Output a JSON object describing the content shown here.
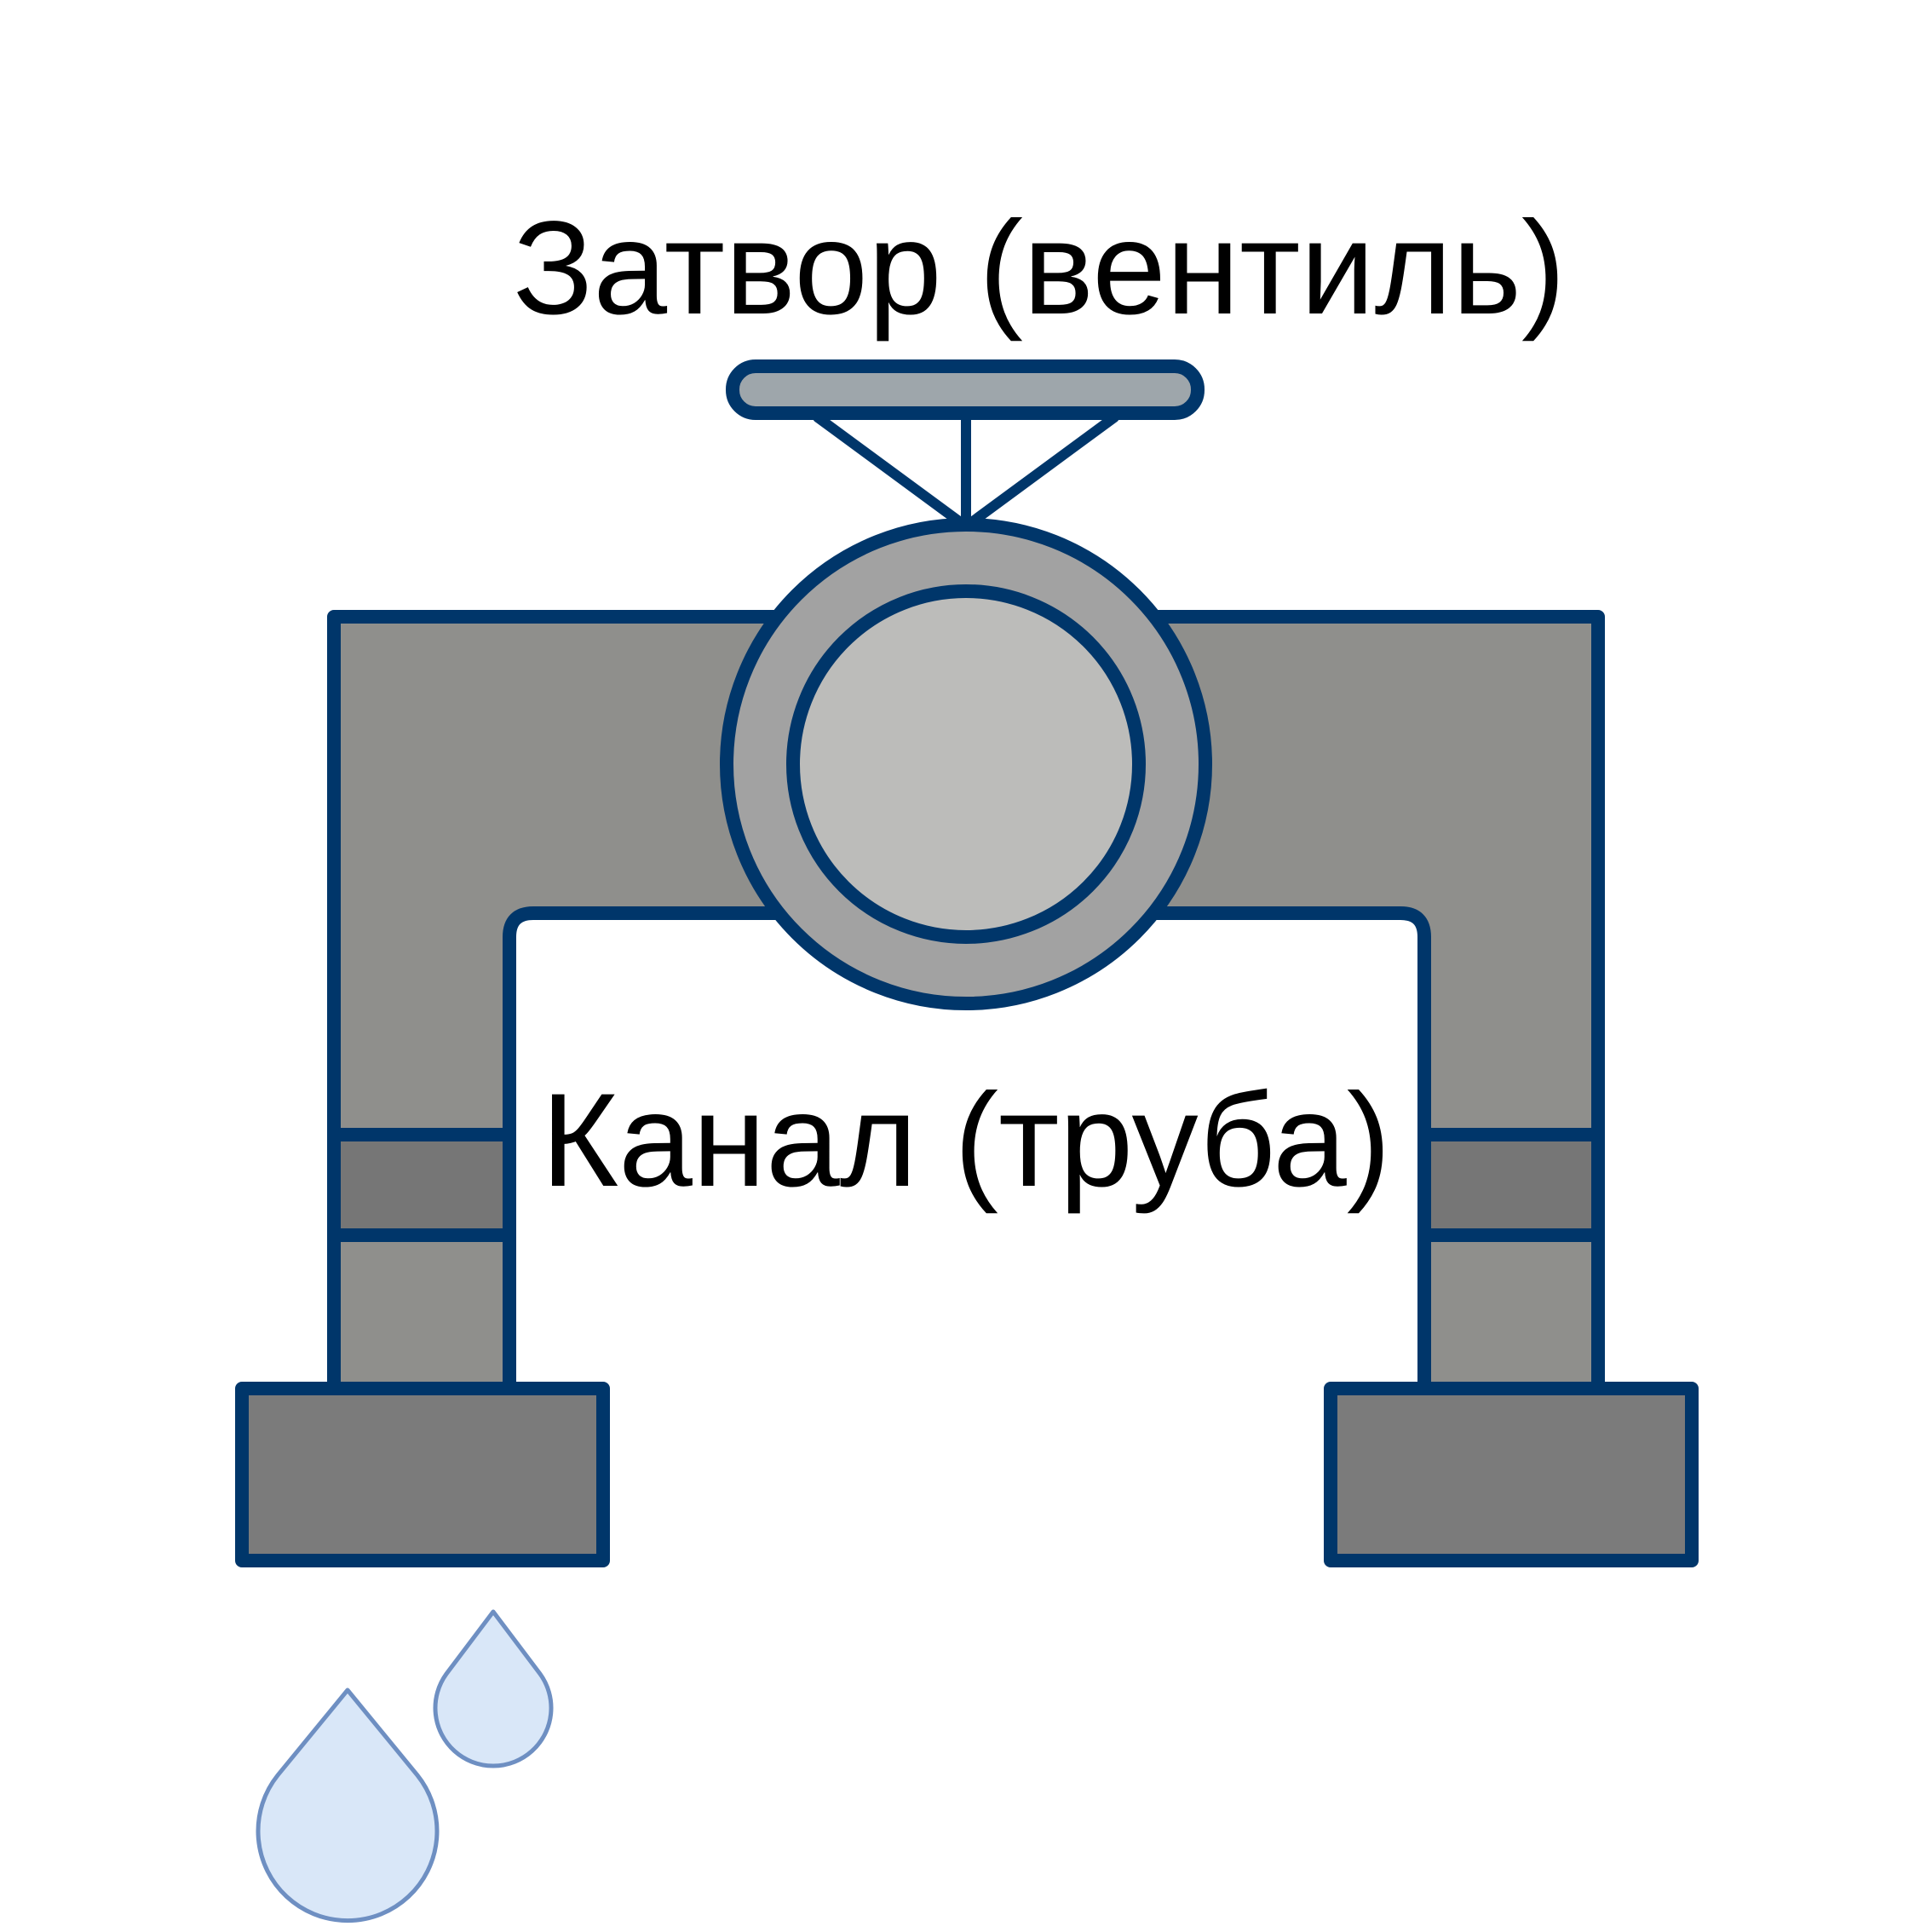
{
  "labels": {
    "valve": "Затвор (вентиль)",
    "channel": "Канал (труба)"
  },
  "colors": {
    "outline": "#00366a",
    "pipe_fill": "#8f8f8c",
    "collar_fill": "#767676",
    "flange_fill": "#7b7b7b",
    "valve_body_fill": "#a2a2a2",
    "valve_disc_fill": "#bcbcba",
    "handle_fill": "#9ea6ab",
    "drop_fill": "#d9e7f8",
    "drop_outline": "#6e8fc2"
  },
  "icons": [
    "valve-handwheel-icon",
    "water-drop-icon"
  ]
}
